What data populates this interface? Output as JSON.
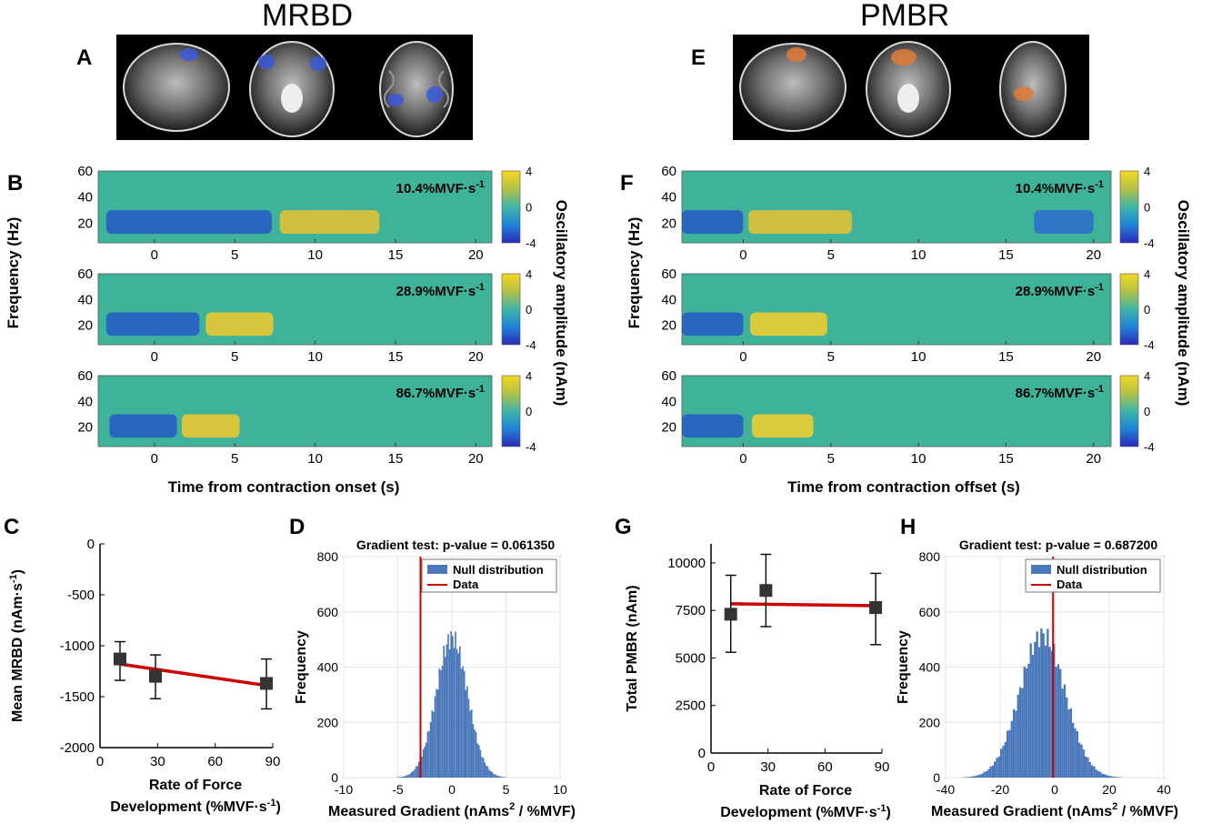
{
  "headers": {
    "left": "MRBD",
    "right": "PMBR"
  },
  "panel_letters": [
    "A",
    "B",
    "C",
    "D",
    "E",
    "F",
    "G",
    "H"
  ],
  "colorbar": {
    "ticks": [
      "4",
      "0",
      "-4"
    ],
    "label": "Oscillatory amplitude (nAm)"
  },
  "spectrograms": {
    "ylabel": "Frequency (Hz)",
    "yticks": [
      "60",
      "40",
      "20"
    ],
    "xticks": [
      "0",
      "5",
      "10",
      "15",
      "20"
    ],
    "conditions": [
      "10.4%MVF·s",
      "28.9%MVF·s",
      "86.7%MVF·s"
    ],
    "condition_sup": "-1",
    "xlabel_left": "Time from contraction onset  (s)",
    "xlabel_right": "Time from contraction offset  (s)"
  },
  "chart_data": [
    {
      "panel": "C",
      "type": "scatter",
      "x": [
        10.4,
        28.9,
        86.7
      ],
      "y": [
        -1130,
        -1300,
        -1370
      ],
      "err_low": [
        -1340,
        -1520,
        -1620
      ],
      "err_high": [
        -960,
        -1090,
        -1130
      ],
      "fit": {
        "x": [
          10.4,
          86.7
        ],
        "y": [
          -1180,
          -1390
        ]
      },
      "xlim": [
        0,
        90
      ],
      "ylim": [
        -2000,
        0
      ],
      "xticks": [
        "0",
        "30",
        "60",
        "90"
      ],
      "yticks": [
        "0",
        "-500",
        "-1000",
        "-1500",
        "-2000"
      ],
      "ylabel": "Mean MRBD  (nAm·s",
      "ylabel_sup": "-1",
      "ylabel_end": ")",
      "xlabel1": "Rate of Force",
      "xlabel2": "Development (%MVF·s",
      "xlabel_sup": "-1",
      "xlabel_end": ")",
      "colors": {
        "marker": "#333333",
        "fit": "#cc0000"
      }
    },
    {
      "panel": "D",
      "type": "bar",
      "title": "Gradient test: p-value = 0.061350",
      "center": 0,
      "sd": 1.45,
      "peak": 545,
      "data_line": -2.9,
      "xlim": [
        -10,
        10
      ],
      "ylim": [
        0,
        800
      ],
      "xticks": [
        "-10",
        "-5",
        "0",
        "5",
        "10"
      ],
      "yticks": [
        "0",
        "200",
        "400",
        "600",
        "800"
      ],
      "ylabel": "Frequency",
      "xlabel": "Measured Gradient (nAms",
      "xlabel_sup": "2",
      "xlabel_end": " / %MVF)",
      "legend": [
        "Null distribution",
        "Data"
      ],
      "colors": {
        "bars": "#4a78bb",
        "line": "#cc0000"
      }
    },
    {
      "panel": "G",
      "type": "scatter",
      "x": [
        10.4,
        28.9,
        86.7
      ],
      "y": [
        7300,
        8550,
        7650
      ],
      "err_low": [
        5300,
        6650,
        5700
      ],
      "err_high": [
        9350,
        10450,
        9450
      ],
      "fit": {
        "x": [
          10.4,
          86.7
        ],
        "y": [
          7850,
          7750
        ]
      },
      "xlim": [
        0,
        90
      ],
      "ylim": [
        0,
        11000
      ],
      "xticks": [
        "0",
        "30",
        "60",
        "90"
      ],
      "yticks": [
        "0",
        "2500",
        "5000",
        "7500",
        "10000"
      ],
      "ylabel": "Total PMBR  (nAm)",
      "xlabel1": "Rate of Force",
      "xlabel2": "Development (%MVF·s",
      "xlabel_sup": "-1",
      "xlabel_end": ")",
      "colors": {
        "marker": "#333333",
        "fit": "#cc0000"
      }
    },
    {
      "panel": "H",
      "type": "bar",
      "title": "Gradient test: p-value = 0.687200",
      "center": -4.5,
      "sd": 8.3,
      "peak": 555,
      "data_line": -0.6,
      "xlim": [
        -40,
        40
      ],
      "ylim": [
        0,
        800
      ],
      "xticks": [
        "-40",
        "-20",
        "0",
        "20",
        "40"
      ],
      "yticks": [
        "0",
        "200",
        "400",
        "600",
        "800"
      ],
      "ylabel": "Frequency",
      "xlabel": "Measured Gradient (nAms",
      "xlabel_sup": "2",
      "xlabel_end": " / %MVF)",
      "legend": [
        "Null distribution",
        "Data"
      ],
      "colors": {
        "bars": "#4a78bb",
        "line": "#cc0000"
      }
    }
  ]
}
